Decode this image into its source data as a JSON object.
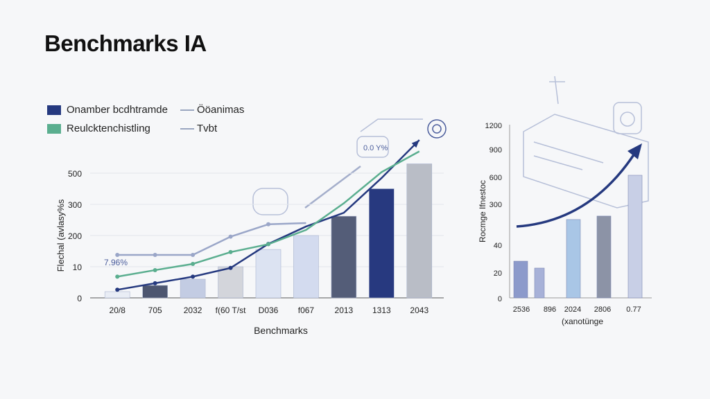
{
  "title": "Benchmarks IA",
  "legend": [
    {
      "label": "Onamber bcdhtramde",
      "color": "#25397f",
      "kind": "box"
    },
    {
      "label": "Reulcktenchistling",
      "color": "#5aae8f",
      "kind": "box"
    },
    {
      "label": "Ööanimas",
      "color": "#9aa6c0",
      "kind": "line"
    },
    {
      "label": "Tvbt",
      "color": "#9aa6c0",
      "kind": "line"
    }
  ],
  "chart_data": [
    {
      "type": "bar",
      "xlabel": "Benchmarks",
      "ylabel": "Flechal (avlasy%s",
      "y_ticks": [
        0,
        10,
        200,
        300,
        500
      ],
      "grid": true,
      "categories": [
        "20/8",
        "705",
        "2032",
        "f(60 T/st",
        "D036",
        "f067",
        "2013",
        "1313",
        "2043"
      ],
      "values": [
        2,
        4,
        6,
        10,
        115,
        200,
        262,
        400,
        560
      ],
      "bar_colors": [
        "#e9edf5",
        "#4d5670",
        "#c3cce3",
        "#d3d5db",
        "#dce3f2",
        "#d3dbef",
        "#545d78",
        "#27397f",
        "#b9bdc6"
      ],
      "series": [
        {
          "values": [
            2.6,
            4.7,
            6.8,
            9.6,
            149,
            229,
            273,
            469,
            713
          ],
          "color": "#25397f"
        },
        {
          "values": [
            6.8,
            8.9,
            27,
            99,
            147,
            218,
            307,
            507,
            640
          ],
          "color": "#5aae8f"
        },
        {
          "values": [
            82,
            82,
            82,
            193,
            236,
            240,
            null,
            null,
            null
          ],
          "color": "#9aa6c8"
        }
      ],
      "annotations": [
        "7.96%",
        "0.0 Y%"
      ]
    },
    {
      "type": "bar",
      "xlabel": "(xanotünge",
      "ylabel": "Rocmge Ifnestoc",
      "y_ticks": [
        0,
        20,
        40,
        300,
        600,
        900,
        1200
      ],
      "categories": [
        "2536",
        "896",
        "2024",
        "2806",
        "0.77"
      ],
      "values": [
        28,
        23,
        199,
        221,
        615
      ],
      "bar_colors": [
        "#8c9acb",
        "#a7b1d8",
        "#a9c6e6",
        "#8c93a6",
        "#c8cfe6"
      ],
      "trend_color": "#25397f"
    }
  ]
}
